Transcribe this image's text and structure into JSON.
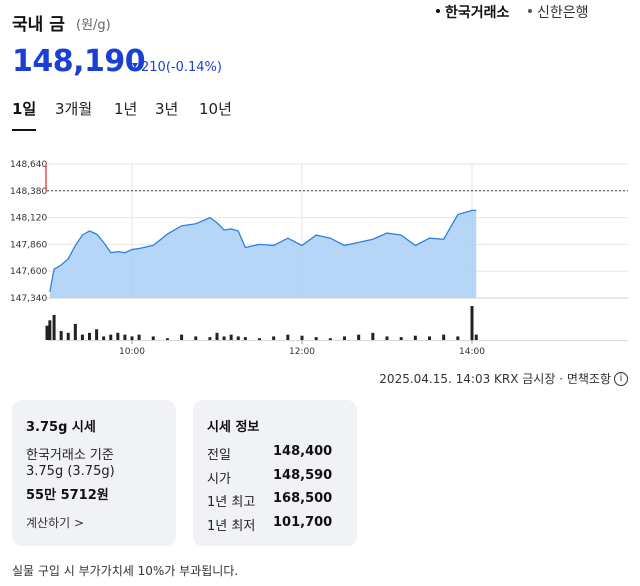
{
  "header": {
    "title": "국내 금",
    "unit": "(원/g)",
    "sources": [
      "한국거래소",
      "신한은행"
    ]
  },
  "quote": {
    "price": "148,190",
    "change": "210",
    "change_pct": "(-0.14%)",
    "direction": "down",
    "color": "#1a3fd6"
  },
  "tabs": [
    {
      "label": "1일",
      "active": true
    },
    {
      "label": "3개월",
      "active": false
    },
    {
      "label": "1년",
      "active": false
    },
    {
      "label": "3년",
      "active": false
    },
    {
      "label": "10년",
      "active": false
    }
  ],
  "chart_data": {
    "type": "area",
    "y_ticks": [
      "148,640",
      "148,380",
      "148,120",
      "147,860",
      "147,600",
      "147,340"
    ],
    "ylim": [
      147340,
      148640
    ],
    "x_ticks": [
      "10:00",
      "12:00",
      "14:00"
    ],
    "reference_line": 148380,
    "x": [
      "09:00",
      "09:02",
      "09:05",
      "09:10",
      "09:15",
      "09:20",
      "09:25",
      "09:30",
      "09:35",
      "09:40",
      "09:45",
      "09:50",
      "09:55",
      "10:00",
      "10:05",
      "10:15",
      "10:25",
      "10:35",
      "10:45",
      "10:55",
      "11:00",
      "11:05",
      "11:10",
      "11:15",
      "11:20",
      "11:30",
      "11:40",
      "11:50",
      "12:00",
      "12:10",
      "12:20",
      "12:30",
      "12:40",
      "12:50",
      "13:00",
      "13:10",
      "13:20",
      "13:30",
      "13:40",
      "13:50",
      "14:00",
      "14:03"
    ],
    "values": [
      148400,
      147400,
      147620,
      147660,
      147720,
      147850,
      147950,
      147990,
      147960,
      147880,
      147780,
      147790,
      147780,
      147810,
      147820,
      147850,
      147960,
      148040,
      148060,
      148120,
      148070,
      148000,
      148010,
      147990,
      147830,
      147860,
      147850,
      147920,
      147850,
      147950,
      147920,
      147850,
      147880,
      147910,
      147970,
      147950,
      147850,
      147920,
      147910,
      148150,
      148190,
      148190
    ],
    "volume": [
      40,
      55,
      70,
      25,
      20,
      45,
      15,
      20,
      30,
      10,
      15,
      20,
      15,
      10,
      15,
      10,
      5,
      15,
      10,
      8,
      20,
      10,
      15,
      10,
      8,
      5,
      10,
      15,
      12,
      8,
      5,
      10,
      15,
      20,
      10,
      8,
      12,
      10,
      15,
      10,
      95,
      15
    ],
    "line_color": "#2f7fe0",
    "fill_color": "#a9cff7",
    "up_color": "#e03a3a"
  },
  "timestamp": {
    "text": "2025.04.15. 14:03 KRX 금시장 · 면책조항",
    "icon": "info-icon"
  },
  "card_conversion": {
    "title": "3.75g 시세",
    "line1": "한국거래소 기준",
    "line2": "3.75g (3.75g)",
    "price": "55만 5712원",
    "link": "계산하기 >"
  },
  "card_info": {
    "title": "시세 정보",
    "rows": [
      {
        "label": "전일",
        "value": "148,400"
      },
      {
        "label": "시가",
        "value": "148,590"
      },
      {
        "label": "1년 최고",
        "value": "168,500"
      },
      {
        "label": "1년 최저",
        "value": "101,700"
      }
    ]
  },
  "footnote": "실물 구입 시 부가가치세 10%가 부과됩니다."
}
